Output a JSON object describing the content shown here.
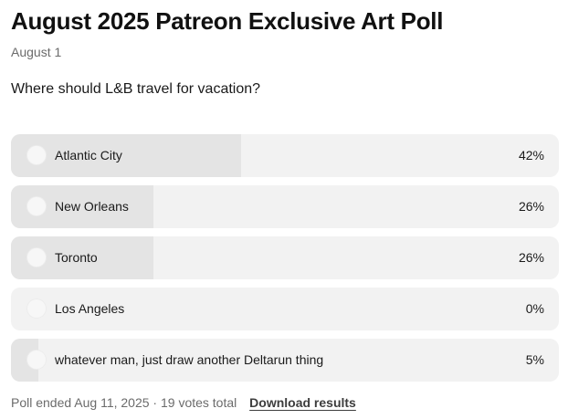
{
  "post": {
    "title": "August 2025 Patreon Exclusive Art Poll",
    "date": "August 1"
  },
  "poll": {
    "question": "Where should L&B travel for vacation?",
    "options": [
      {
        "label": "Atlantic City",
        "percent_text": "42%",
        "percent": 42
      },
      {
        "label": "New Orleans",
        "percent_text": "26%",
        "percent": 26
      },
      {
        "label": "Toronto",
        "percent_text": "26%",
        "percent": 26
      },
      {
        "label": "Los Angeles",
        "percent_text": "0%",
        "percent": 0
      },
      {
        "label": "whatever man, just draw another Deltarun thing",
        "percent_text": "5%",
        "percent": 5
      }
    ],
    "status": "Poll ended Aug 11, 2025 · 19 votes total",
    "download_label": "Download results"
  },
  "colors": {
    "option_background": "#f2f2f2",
    "option_fill": "#e4e4e4",
    "muted_text": "#6b6b6b"
  }
}
